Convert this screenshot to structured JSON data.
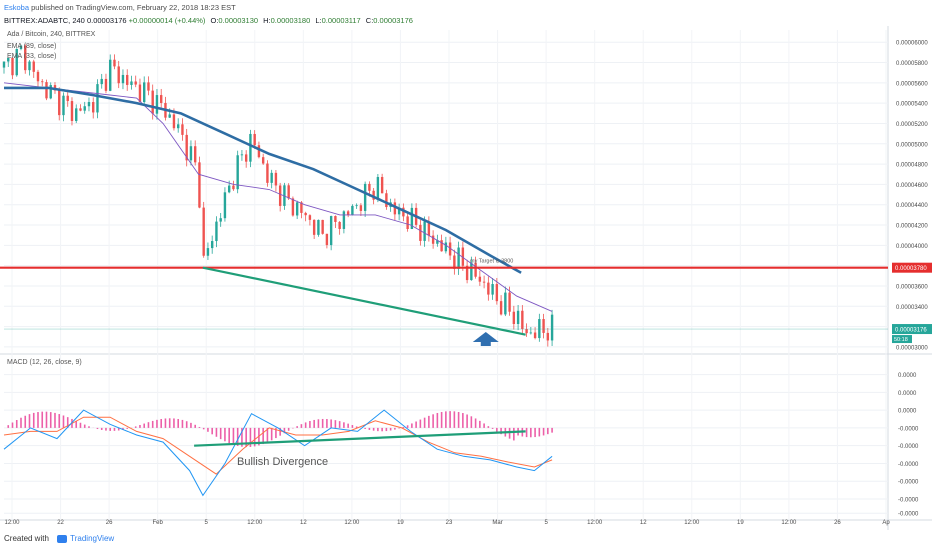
{
  "header": {
    "author": "Eskoba",
    "published": "published on TradingView.com, February 22, 2018 18:23 EST",
    "symbol": "BITTREX:ADABTC, 240",
    "last": "0.00003176",
    "change": "+0.00000014 (+0.44%)",
    "o_label": "O:",
    "o": "0.00003130",
    "h_label": "H:",
    "h": "0.00003180",
    "l_label": "L:",
    "l": "0.00003117",
    "c_label": "C:",
    "c": "0.00003176"
  },
  "legend": {
    "title": "Ada / Bitcoin, 240, BITTREX",
    "ema_slow": "EMA (89, close)",
    "ema_fast": "EMA (33, close)"
  },
  "macd_legend": "MACD (12, 26, close, 9)",
  "annotations": {
    "target": "my Target is 3800",
    "divergence": "Bullish Divergence"
  },
  "colors": {
    "up": "#26a69a",
    "down": "#ef5350",
    "target_line": "#e52e2e",
    "trendline": "#1f9e78",
    "ema_slow": "#2e6da4",
    "ema_fast": "#7e57c2",
    "macd": "#2196f3",
    "signal": "#ff7043",
    "hist": "#ec5fa8",
    "arrow": "#2f6fb0"
  },
  "footer": {
    "created_with": "Created with",
    "brand": "TradingView"
  },
  "chart_data": [
    {
      "type": "candlestick",
      "title": "Ada / Bitcoin, 240, BITTREX",
      "y_ticks": [
        "0.00006000",
        "0.00005800",
        "0.00005600",
        "0.00005400",
        "0.00005200",
        "0.00005000",
        "0.00004800",
        "0.00004600",
        "0.00004400",
        "0.00004200",
        "0.00004000",
        "0.00003800",
        "0.00003600",
        "0.00003400",
        "0.00003200",
        "0.00003000"
      ],
      "ylim": [
        2.95e-05,
        6.12e-05
      ],
      "price_label": "0.00003176",
      "target_label": "0.00003780",
      "countdown": "50:18",
      "target_level": 3.78e-05,
      "x_ticks": [
        "12:00",
        "22",
        "26",
        "Feb",
        "5",
        "12:00",
        "12",
        "12:00",
        "19",
        "23",
        "Mar",
        "5",
        "12:00",
        "12",
        "12:00",
        "19",
        "12:00",
        "26",
        "Ap"
      ],
      "series_path": [
        [
          0,
          5.75e-05
        ],
        [
          0.02,
          5.9e-05
        ],
        [
          0.04,
          5.6e-05
        ],
        [
          0.06,
          5.45e-05
        ],
        [
          0.08,
          5.3e-05
        ],
        [
          0.1,
          5.4e-05
        ],
        [
          0.12,
          5.75e-05
        ],
        [
          0.14,
          5.6e-05
        ],
        [
          0.16,
          5.5e-05
        ],
        [
          0.18,
          5.35e-05
        ],
        [
          0.2,
          5.1e-05
        ],
        [
          0.22,
          4.7e-05
        ],
        [
          0.225,
          3.8e-05
        ],
        [
          0.24,
          4.2e-05
        ],
        [
          0.26,
          4.7e-05
        ],
        [
          0.28,
          5.05e-05
        ],
        [
          0.3,
          4.65e-05
        ],
        [
          0.32,
          4.45e-05
        ],
        [
          0.34,
          4.3e-05
        ],
        [
          0.36,
          4.1e-05
        ],
        [
          0.38,
          4.25e-05
        ],
        [
          0.4,
          4.4e-05
        ],
        [
          0.42,
          4.6e-05
        ],
        [
          0.44,
          4.35e-05
        ],
        [
          0.46,
          4.25e-05
        ],
        [
          0.48,
          4.1e-05
        ],
        [
          0.5,
          3.95e-05
        ],
        [
          0.52,
          3.8e-05
        ],
        [
          0.54,
          3.65e-05
        ],
        [
          0.56,
          3.45e-05
        ],
        [
          0.58,
          3.3e-05
        ],
        [
          0.59,
          3.13e-05
        ],
        [
          0.61,
          3.17e-05
        ],
        [
          0.62,
          3.18e-05
        ]
      ],
      "ema_slow_path": [
        [
          0,
          5.55e-05
        ],
        [
          0.05,
          5.55e-05
        ],
        [
          0.1,
          5.48e-05
        ],
        [
          0.15,
          5.4e-05
        ],
        [
          0.2,
          5.3e-05
        ],
        [
          0.25,
          5.1e-05
        ],
        [
          0.3,
          4.9e-05
        ],
        [
          0.35,
          4.75e-05
        ],
        [
          0.4,
          4.55e-05
        ],
        [
          0.45,
          4.35e-05
        ],
        [
          0.5,
          4.15e-05
        ],
        [
          0.55,
          3.9e-05
        ],
        [
          0.585,
          3.73e-05
        ]
      ],
      "ema_fast_path": [
        [
          0,
          5.6e-05
        ],
        [
          0.05,
          5.55e-05
        ],
        [
          0.1,
          5.5e-05
        ],
        [
          0.15,
          5.45e-05
        ],
        [
          0.18,
          5.2e-05
        ],
        [
          0.22,
          4.7e-05
        ],
        [
          0.26,
          4.6e-05
        ],
        [
          0.3,
          4.55e-05
        ],
        [
          0.34,
          4.4e-05
        ],
        [
          0.38,
          4.3e-05
        ],
        [
          0.42,
          4.3e-05
        ],
        [
          0.46,
          4.2e-05
        ],
        [
          0.5,
          4e-05
        ],
        [
          0.54,
          3.75e-05
        ],
        [
          0.58,
          3.5e-05
        ],
        [
          0.62,
          3.35e-05
        ]
      ],
      "trendline": [
        [
          0.225,
          3.78e-05
        ],
        [
          0.59,
          3.12e-05
        ]
      ]
    },
    {
      "type": "macd",
      "title": "MACD (12, 26, close, 9)",
      "y_ticks": [
        "0.0000",
        "0.0000",
        "0.0000",
        "-0.0000",
        "-0.0000",
        "-0.0000",
        "-0.0000",
        "-0.0000",
        "-0.0000"
      ],
      "ylim": [
        -1,
        1
      ],
      "macd_path": [
        [
          0,
          -0.2
        ],
        [
          0.03,
          0.1
        ],
        [
          0.06,
          -0.05
        ],
        [
          0.09,
          0.35
        ],
        [
          0.12,
          0.15
        ],
        [
          0.15,
          0.0
        ],
        [
          0.18,
          -0.1
        ],
        [
          0.21,
          -0.5
        ],
        [
          0.225,
          -0.85
        ],
        [
          0.25,
          -0.4
        ],
        [
          0.28,
          0.3
        ],
        [
          0.31,
          0.1
        ],
        [
          0.34,
          -0.15
        ],
        [
          0.37,
          0.1
        ],
        [
          0.4,
          0.05
        ],
        [
          0.43,
          0.35
        ],
        [
          0.46,
          0.05
        ],
        [
          0.49,
          -0.2
        ],
        [
          0.52,
          -0.3
        ],
        [
          0.55,
          -0.35
        ],
        [
          0.58,
          -0.45
        ],
        [
          0.6,
          -0.5
        ],
        [
          0.62,
          -0.3
        ]
      ],
      "signal_path": [
        [
          0,
          0.0
        ],
        [
          0.03,
          0.05
        ],
        [
          0.06,
          0.05
        ],
        [
          0.09,
          0.25
        ],
        [
          0.12,
          0.25
        ],
        [
          0.15,
          0.05
        ],
        [
          0.18,
          -0.05
        ],
        [
          0.21,
          -0.3
        ],
        [
          0.24,
          -0.55
        ],
        [
          0.27,
          -0.2
        ],
        [
          0.3,
          0.1
        ],
        [
          0.33,
          0.0
        ],
        [
          0.36,
          0.0
        ],
        [
          0.39,
          0.05
        ],
        [
          0.42,
          0.2
        ],
        [
          0.45,
          0.1
        ],
        [
          0.48,
          -0.1
        ],
        [
          0.51,
          -0.25
        ],
        [
          0.54,
          -0.3
        ],
        [
          0.57,
          -0.38
        ],
        [
          0.6,
          -0.45
        ],
        [
          0.62,
          -0.35
        ]
      ],
      "divergence_line": [
        [
          0.215,
          -0.15
        ],
        [
          0.59,
          0.05
        ]
      ]
    }
  ]
}
